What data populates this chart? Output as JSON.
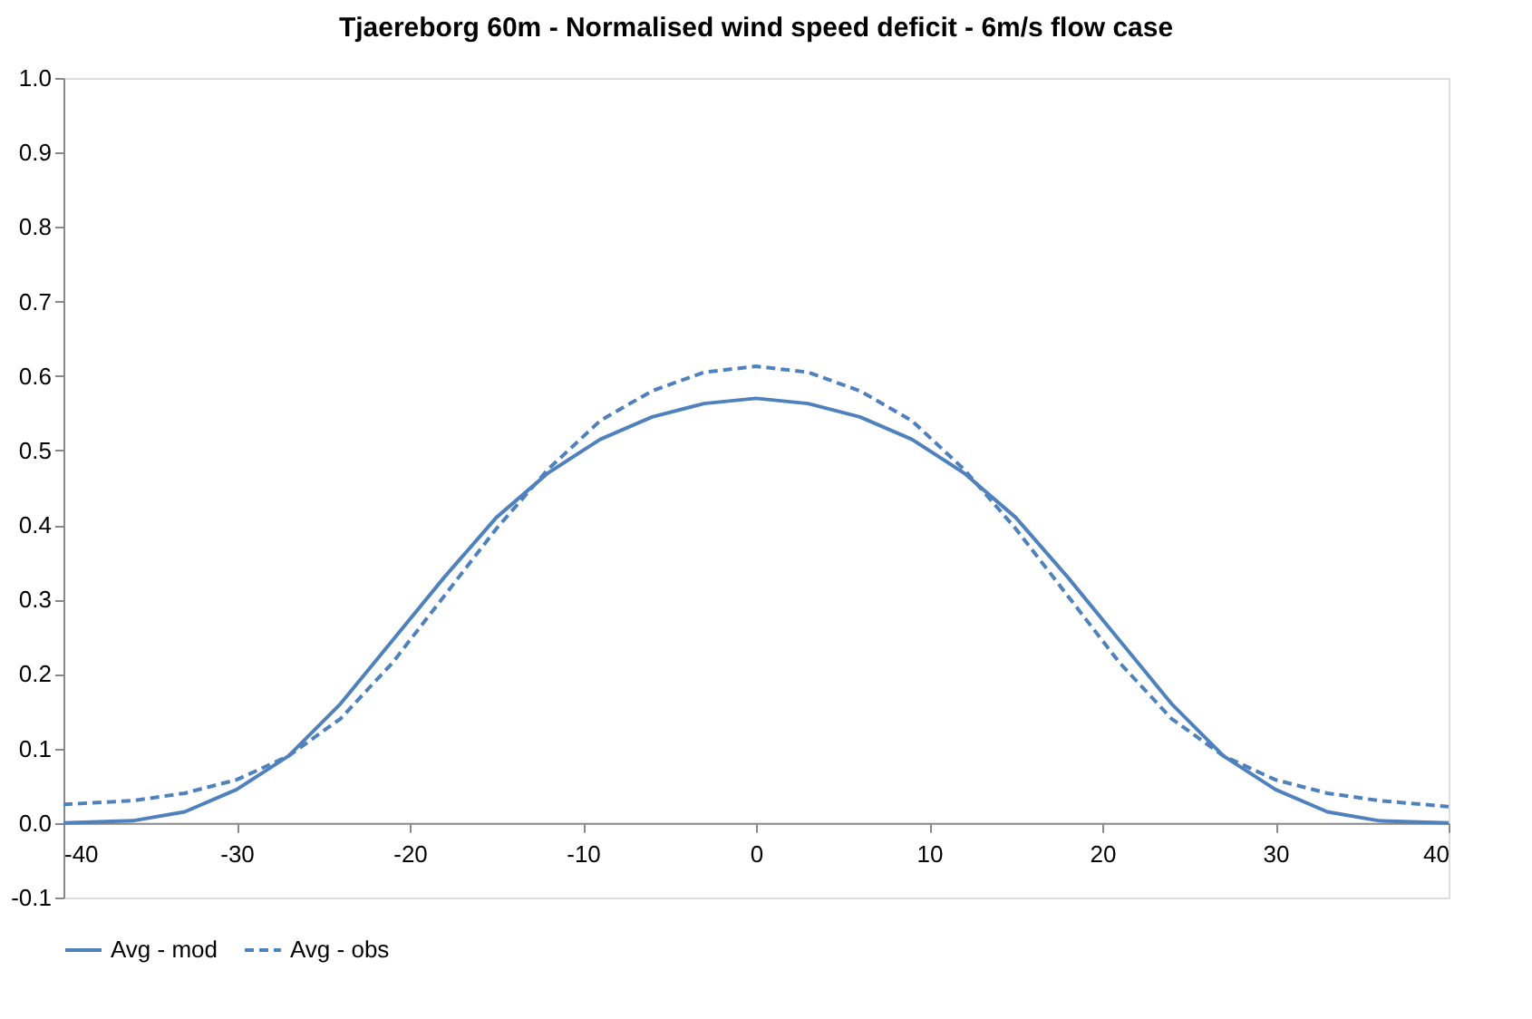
{
  "chart_data": {
    "type": "line",
    "title": "Tjaereborg 60m - Normalised wind speed deficit - 6m/s flow case",
    "x": [
      -40,
      -36,
      -33,
      -30,
      -27,
      -24,
      -21,
      -18,
      -15,
      -12,
      -9,
      -6,
      -3,
      0,
      3,
      6,
      9,
      12,
      15,
      18,
      21,
      24,
      27,
      30,
      33,
      36,
      40
    ],
    "series": [
      {
        "name": "Avg - mod",
        "color": "#4f81bd",
        "line_style": "solid",
        "values": [
          0.0,
          0.003,
          0.015,
          0.045,
          0.09,
          0.16,
          0.245,
          0.33,
          0.41,
          0.47,
          0.515,
          0.545,
          0.563,
          0.57,
          0.563,
          0.545,
          0.515,
          0.47,
          0.41,
          0.33,
          0.245,
          0.16,
          0.09,
          0.045,
          0.015,
          0.003,
          0.0
        ]
      },
      {
        "name": "Avg - obs",
        "color": "#4f81bd",
        "line_style": "dashed",
        "values": [
          0.025,
          0.03,
          0.04,
          0.058,
          0.09,
          0.14,
          0.215,
          0.305,
          0.395,
          0.475,
          0.54,
          0.58,
          0.605,
          0.613,
          0.605,
          0.58,
          0.54,
          0.475,
          0.395,
          0.305,
          0.215,
          0.14,
          0.09,
          0.058,
          0.04,
          0.03,
          0.022
        ]
      }
    ],
    "xlim": [
      -40,
      40
    ],
    "xticks": [
      -40,
      -30,
      -20,
      -10,
      0,
      10,
      20,
      30,
      40
    ],
    "ylim": [
      -0.1,
      1.0
    ],
    "yticks": [
      {
        "value": -0.1,
        "label": "-0.1"
      },
      {
        "value": 0,
        "label": "0.0"
      },
      {
        "value": 0.1,
        "label": "0.1"
      },
      {
        "value": 0.2,
        "label": "0.2"
      },
      {
        "value": 0.3,
        "label": "0.3"
      },
      {
        "value": 0.4,
        "label": "0.4"
      },
      {
        "value": 0.5,
        "label": "0.5"
      },
      {
        "value": 0.6,
        "label": "0.6"
      },
      {
        "value": 0.7,
        "label": "0.7"
      },
      {
        "value": 0.8,
        "label": "0.8"
      },
      {
        "value": 0.9,
        "label": "0.9"
      },
      {
        "value": 1.0,
        "label": "1.0"
      }
    ],
    "grid": false,
    "legend": "bottom",
    "marker": "none"
  }
}
